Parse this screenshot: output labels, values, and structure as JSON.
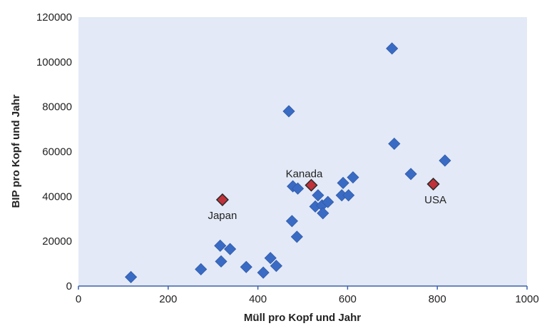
{
  "chart_data": {
    "type": "scatter",
    "title": "",
    "xlabel": "Müll pro Kopf und Jahr",
    "ylabel": "BIP pro Kopf und Jahr",
    "xlim": [
      0,
      1000
    ],
    "ylim": [
      0,
      120000
    ],
    "xticks": [
      "0",
      "200",
      "400",
      "600",
      "800",
      "1000"
    ],
    "yticks": [
      "0",
      "20000",
      "40000",
      "60000",
      "80000",
      "100000",
      "120000"
    ],
    "grid": false,
    "legend": "none",
    "colors": {
      "plot_background": "#e3e9f6",
      "axis": "#3a62a8",
      "marker": "#3a6bc4",
      "highlight": "#c0323a"
    },
    "series": [
      {
        "points": [
          {
            "x": 117,
            "y": 4000
          },
          {
            "x": 273,
            "y": 7500
          },
          {
            "x": 316,
            "y": 18000
          },
          {
            "x": 318,
            "y": 11000
          },
          {
            "x": 338,
            "y": 16500
          },
          {
            "x": 374,
            "y": 8500
          },
          {
            "x": 412,
            "y": 6000
          },
          {
            "x": 428,
            "y": 12500
          },
          {
            "x": 441,
            "y": 9000
          },
          {
            "x": 469,
            "y": 78000
          },
          {
            "x": 476,
            "y": 29000
          },
          {
            "x": 478,
            "y": 44500
          },
          {
            "x": 487,
            "y": 22000
          },
          {
            "x": 489,
            "y": 43500
          },
          {
            "x": 528,
            "y": 35500
          },
          {
            "x": 534,
            "y": 40500
          },
          {
            "x": 543,
            "y": 36000
          },
          {
            "x": 545,
            "y": 32500
          },
          {
            "x": 556,
            "y": 37500
          },
          {
            "x": 587,
            "y": 40500
          },
          {
            "x": 590,
            "y": 46000
          },
          {
            "x": 602,
            "y": 40500
          },
          {
            "x": 612,
            "y": 48500
          },
          {
            "x": 699,
            "y": 106000
          },
          {
            "x": 704,
            "y": 63500
          },
          {
            "x": 741,
            "y": 50000
          },
          {
            "x": 817,
            "y": 56000
          }
        ]
      },
      {
        "highlight": true,
        "points": [
          {
            "x": 321,
            "y": 38500,
            "label": "Japan"
          },
          {
            "x": 519,
            "y": 45000,
            "label": "Kanada"
          },
          {
            "x": 791,
            "y": 45500,
            "label": "USA"
          }
        ]
      }
    ]
  }
}
